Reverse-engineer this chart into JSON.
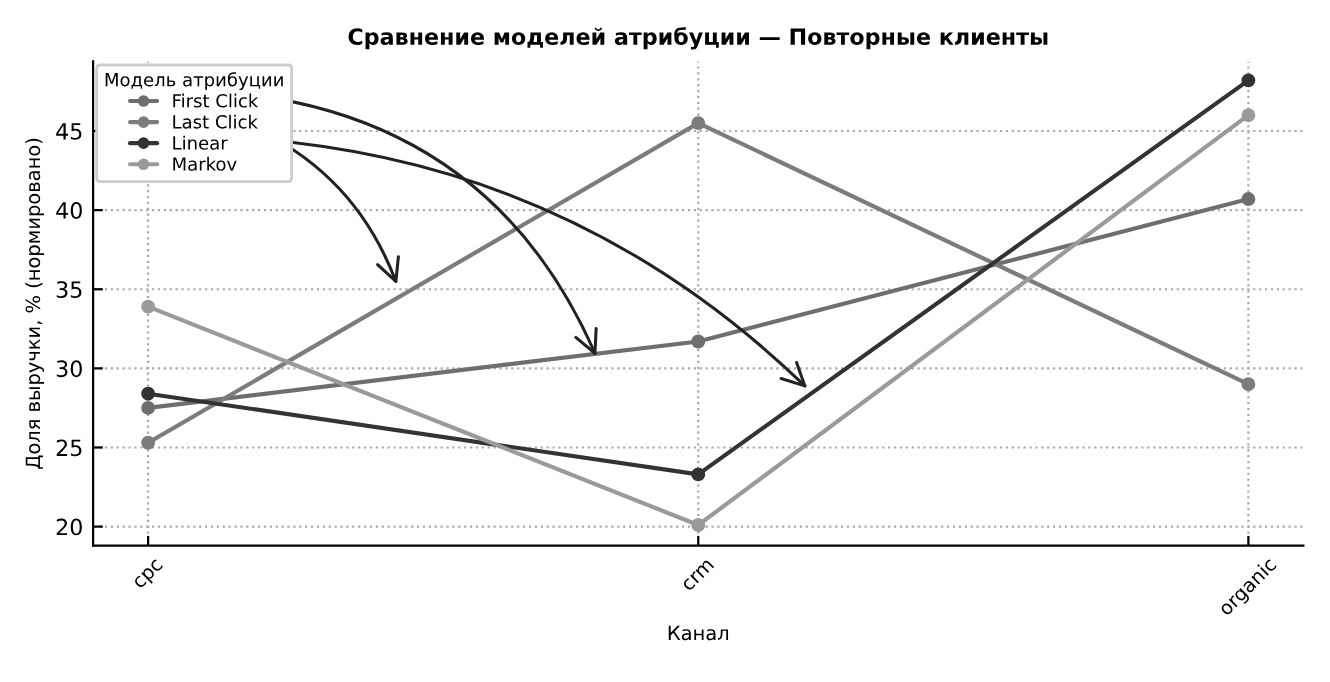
{
  "chart_data": {
    "type": "line",
    "title": "Сравнение моделей атрибуции — Повторные клиенты",
    "xlabel": "Канал",
    "ylabel": "Доля выручки, % (нормировано)",
    "legend_title": "Модель атрибуции",
    "categories": [
      "cpc",
      "crm",
      "organic"
    ],
    "series": [
      {
        "name": "First Click",
        "color": "#6e6e6e",
        "values": [
          27.5,
          31.7,
          40.7
        ]
      },
      {
        "name": "Last Click",
        "color": "#7c7c7c",
        "values": [
          25.3,
          45.5,
          29.0
        ]
      },
      {
        "name": "Linear",
        "color": "#333333",
        "values": [
          28.4,
          23.3,
          48.2
        ]
      },
      {
        "name": "Markov",
        "color": "#9a9a9a",
        "values": [
          33.9,
          20.1,
          46.0
        ]
      }
    ],
    "ylim": [
      18.8,
      49.4
    ],
    "yticks": [
      20,
      25,
      30,
      35,
      40,
      45
    ],
    "grid": true,
    "legend": "top left",
    "marker": "circle",
    "line_style": "solid"
  }
}
